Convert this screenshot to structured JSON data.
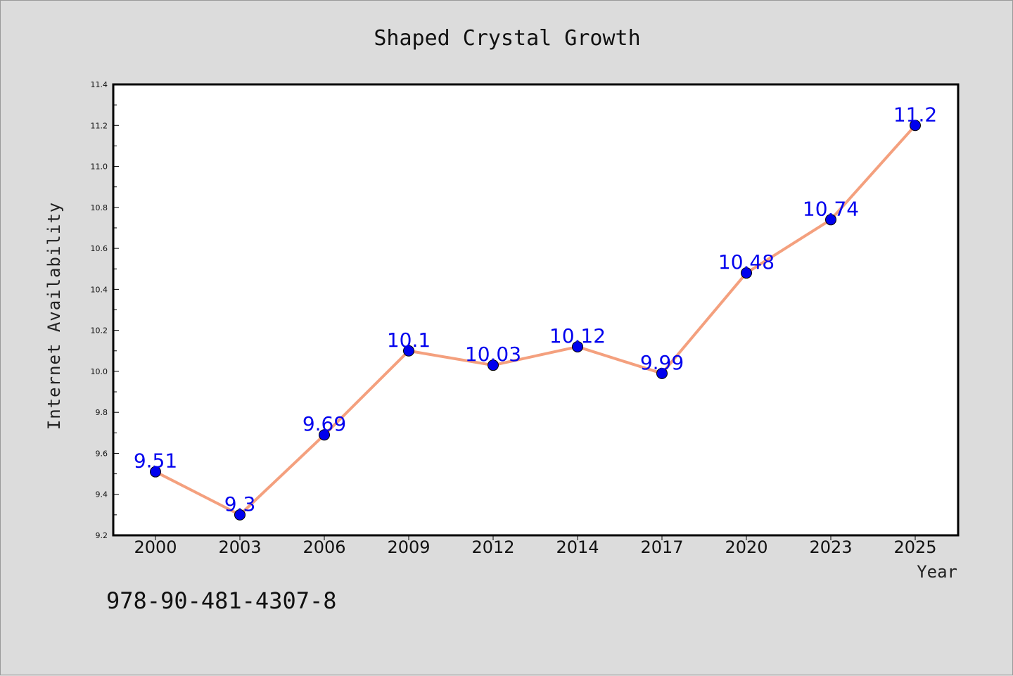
{
  "chart_data": {
    "type": "line",
    "title": "Shaped Crystal Growth",
    "xlabel": "Year",
    "ylabel": "Internet Availability",
    "categories": [
      "2000",
      "2003",
      "2006",
      "2009",
      "2012",
      "2014",
      "2017",
      "2020",
      "2023",
      "2025"
    ],
    "series": [
      {
        "values": [
          9.51,
          9.3,
          9.69,
          10.1,
          10.03,
          10.12,
          9.99,
          10.48,
          10.74,
          11.2
        ]
      }
    ],
    "data_labels": [
      "9.51",
      "9.3",
      "9.69",
      "10.1",
      "10.03",
      "10.12",
      "9.99",
      "10.48",
      "10.74",
      "11.2"
    ],
    "ylim": [
      9.2,
      11.4
    ],
    "yticks": [
      "9.2",
      "9.4",
      "9.6",
      "9.8",
      "10.0",
      "10.2",
      "10.4",
      "10.6",
      "10.8",
      "11.0",
      "11.2",
      "11.4"
    ],
    "grid": false,
    "line_color": "#f4a07e",
    "marker_color": "#0000ee",
    "label_color": "#0000ee"
  },
  "annotation": {
    "isbn": "978-90-481-4307-8"
  }
}
